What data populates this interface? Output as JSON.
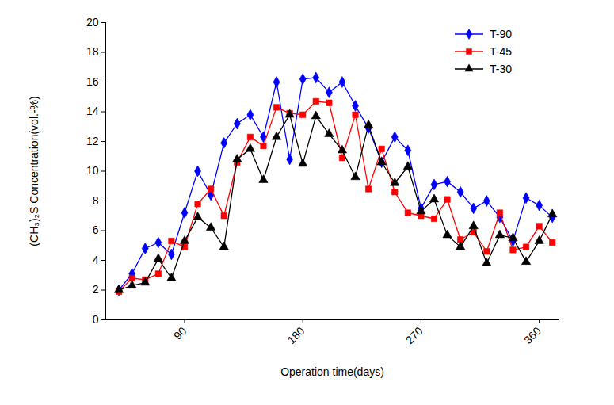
{
  "chart_data": {
    "type": "line",
    "x_label": "Operation time(days)",
    "y_label": "(CH₃)₂S Concentration(vol.-%)",
    "x": [
      40,
      50,
      60,
      70,
      80,
      90,
      100,
      110,
      120,
      130,
      140,
      150,
      160,
      170,
      180,
      190,
      200,
      210,
      220,
      230,
      240,
      250,
      260,
      270,
      280,
      290,
      300,
      310,
      320,
      330,
      340,
      350,
      360,
      370
    ],
    "series": [
      {
        "name": "T-90",
        "color": "#0000ff",
        "marker": "diamond",
        "values": [
          2.0,
          3.1,
          4.8,
          5.2,
          4.4,
          7.2,
          10.0,
          8.4,
          11.9,
          13.2,
          13.8,
          12.3,
          16.0,
          10.8,
          16.2,
          16.3,
          15.3,
          16.0,
          14.4,
          12.9,
          10.6,
          12.3,
          11.4,
          7.5,
          9.1,
          9.3,
          8.6,
          7.5,
          8.0,
          6.9,
          5.3,
          8.2,
          7.7,
          6.9
        ]
      },
      {
        "name": "T-45",
        "color": "#ff0000",
        "marker": "square",
        "values": [
          1.9,
          2.8,
          2.7,
          3.1,
          5.3,
          4.9,
          7.8,
          8.8,
          7.0,
          10.6,
          12.3,
          11.7,
          14.3,
          13.9,
          13.8,
          14.7,
          14.6,
          10.9,
          13.8,
          8.8,
          11.5,
          8.6,
          7.2,
          7.0,
          6.8,
          8.1,
          5.4,
          5.9,
          4.6,
          7.2,
          4.7,
          4.9,
          6.3,
          5.2
        ]
      },
      {
        "name": "T-30",
        "color": "#000000",
        "marker": "triangle",
        "values": [
          2.0,
          2.3,
          2.5,
          4.1,
          2.8,
          5.3,
          6.9,
          6.2,
          4.9,
          10.8,
          11.5,
          9.4,
          12.3,
          13.8,
          10.5,
          13.7,
          12.5,
          11.4,
          9.6,
          13.1,
          10.6,
          9.2,
          10.3,
          7.3,
          8.1,
          5.7,
          4.9,
          6.3,
          3.8,
          5.7,
          5.5,
          3.9,
          5.3,
          7.1
        ]
      }
    ],
    "xlim": [
      30,
      375
    ],
    "xticks": [
      90,
      180,
      270,
      360
    ],
    "ylim": [
      0,
      20
    ],
    "yticks": [
      0,
      2,
      4,
      6,
      8,
      10,
      12,
      14,
      16,
      18,
      20
    ],
    "grid": false,
    "legend": "top-right"
  }
}
